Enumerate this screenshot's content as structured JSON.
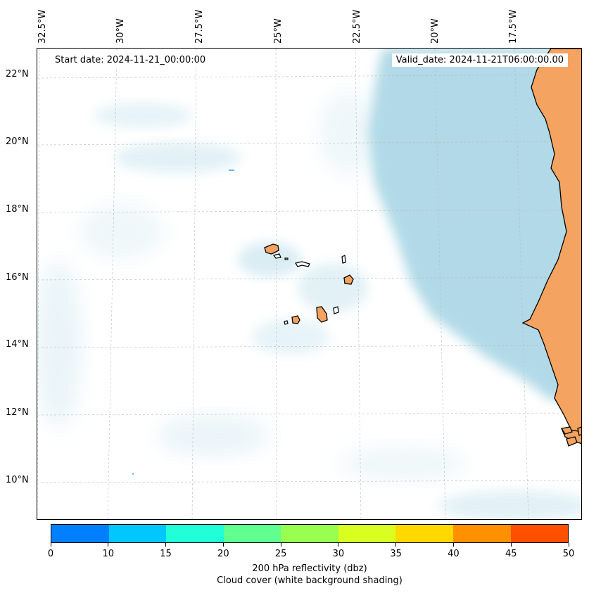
{
  "header": {
    "start_date": "Start date: 2024-11-21_00:00:00",
    "valid_date": "Valid_date: 2024-11-21T06:00:00.00"
  },
  "map": {
    "lat_labels": [
      "22°N",
      "20°N",
      "18°N",
      "16°N",
      "14°N",
      "12°N",
      "10°N"
    ],
    "lon_labels": [
      "32.5°W",
      "30°W",
      "27.5°W",
      "25°W",
      "22.5°W",
      "20°W",
      "17.5°W"
    ],
    "colors": {
      "land": "#f4a460",
      "coastline": "#000000",
      "cloud": "#add8e6",
      "gridline": "#bbbbbb"
    }
  },
  "colorbar": {
    "ticks": [
      "0",
      "10",
      "15",
      "20",
      "25",
      "30",
      "35",
      "40",
      "45",
      "50"
    ],
    "colors": [
      "#0080ff",
      "#00c8ff",
      "#20ffd8",
      "#60ff90",
      "#98ff50",
      "#d8ff20",
      "#ffd800",
      "#ff9000",
      "#ff5000"
    ],
    "label": "200 hPa reflectivity (dbz)",
    "sublabel": "Cloud cover (white background shading)"
  }
}
